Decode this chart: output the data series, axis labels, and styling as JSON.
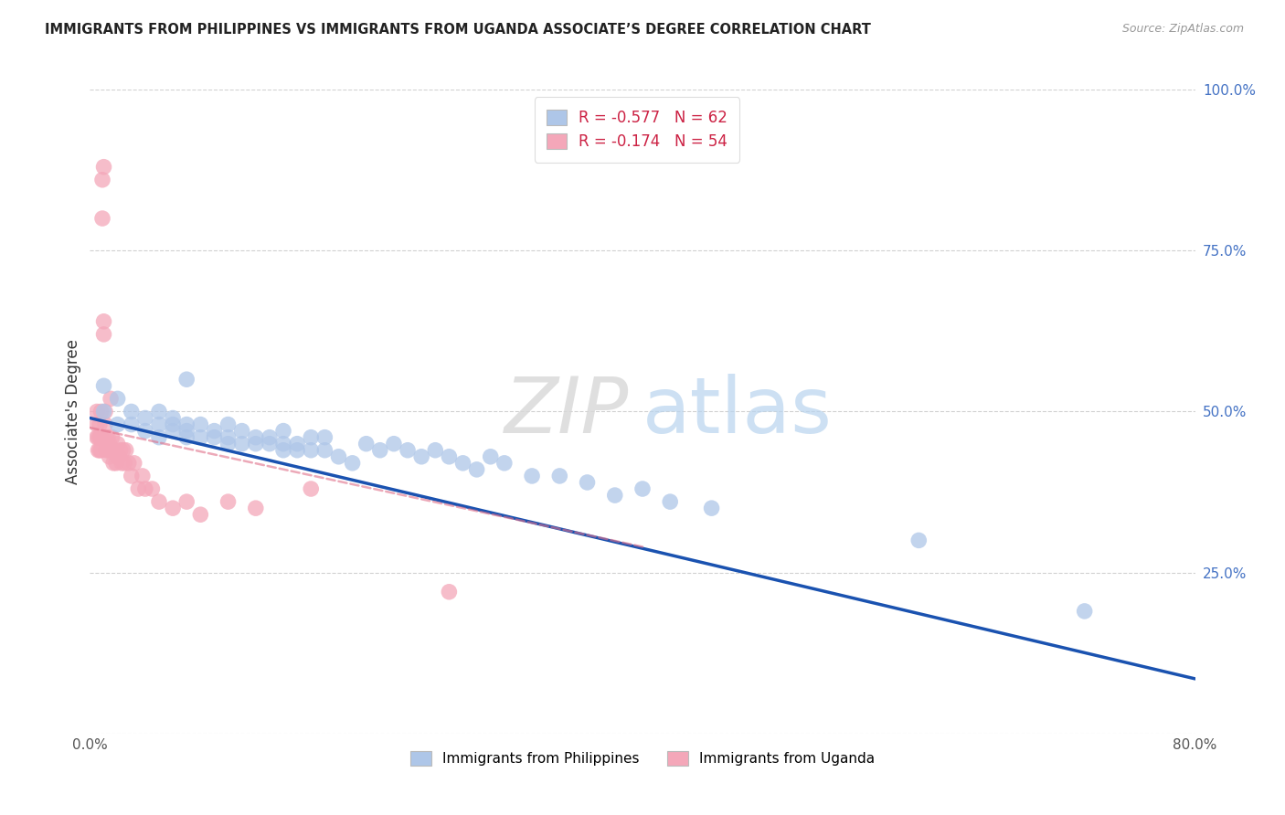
{
  "title": "IMMIGRANTS FROM PHILIPPINES VS IMMIGRANTS FROM UGANDA ASSOCIATE’S DEGREE CORRELATION CHART",
  "source": "Source: ZipAtlas.com",
  "ylabel": "Associate's Degree",
  "r_philippines": -0.577,
  "n_philippines": 62,
  "r_uganda": -0.174,
  "n_uganda": 54,
  "legend_label_philippines": "Immigrants from Philippines",
  "legend_label_uganda": "Immigrants from Uganda",
  "color_philippines": "#aec6e8",
  "color_uganda": "#f4a7b9",
  "trendline_color_philippines": "#1a52b0",
  "trendline_color_uganda": "#e0708a",
  "watermark_zip": "ZIP",
  "watermark_atlas": "atlas",
  "xlim": [
    0.0,
    0.8
  ],
  "ylim": [
    0.0,
    1.0
  ],
  "right_ytick_labels": [
    "",
    "25.0%",
    "50.0%",
    "75.0%",
    "100.0%"
  ],
  "right_ytick_color": "#4472c4",
  "phil_trendline_x0": 0.0,
  "phil_trendline_y0": 0.49,
  "phil_trendline_x1": 0.8,
  "phil_trendline_y1": 0.085,
  "ug_trendline_x0": 0.0,
  "ug_trendline_y0": 0.475,
  "ug_trendline_x1": 0.4,
  "ug_trendline_y1": 0.29,
  "phil_x": [
    0.01,
    0.01,
    0.02,
    0.02,
    0.03,
    0.03,
    0.04,
    0.04,
    0.05,
    0.05,
    0.05,
    0.06,
    0.06,
    0.06,
    0.07,
    0.07,
    0.07,
    0.07,
    0.08,
    0.08,
    0.09,
    0.09,
    0.1,
    0.1,
    0.1,
    0.11,
    0.11,
    0.12,
    0.12,
    0.13,
    0.13,
    0.14,
    0.14,
    0.14,
    0.15,
    0.15,
    0.16,
    0.16,
    0.17,
    0.17,
    0.18,
    0.19,
    0.2,
    0.21,
    0.22,
    0.23,
    0.24,
    0.25,
    0.26,
    0.27,
    0.28,
    0.29,
    0.3,
    0.32,
    0.34,
    0.36,
    0.38,
    0.4,
    0.42,
    0.45,
    0.6,
    0.72
  ],
  "phil_y": [
    0.5,
    0.54,
    0.48,
    0.52,
    0.48,
    0.5,
    0.47,
    0.49,
    0.46,
    0.48,
    0.5,
    0.47,
    0.48,
    0.49,
    0.46,
    0.47,
    0.48,
    0.55,
    0.46,
    0.48,
    0.46,
    0.47,
    0.45,
    0.46,
    0.48,
    0.45,
    0.47,
    0.45,
    0.46,
    0.45,
    0.46,
    0.44,
    0.45,
    0.47,
    0.44,
    0.45,
    0.44,
    0.46,
    0.44,
    0.46,
    0.43,
    0.42,
    0.45,
    0.44,
    0.45,
    0.44,
    0.43,
    0.44,
    0.43,
    0.42,
    0.41,
    0.43,
    0.42,
    0.4,
    0.4,
    0.39,
    0.37,
    0.38,
    0.36,
    0.35,
    0.3,
    0.19
  ],
  "ug_x": [
    0.005,
    0.005,
    0.005,
    0.006,
    0.006,
    0.007,
    0.007,
    0.007,
    0.008,
    0.008,
    0.008,
    0.009,
    0.009,
    0.01,
    0.01,
    0.01,
    0.011,
    0.011,
    0.012,
    0.012,
    0.013,
    0.013,
    0.014,
    0.014,
    0.015,
    0.015,
    0.016,
    0.016,
    0.017,
    0.018,
    0.019,
    0.02,
    0.02,
    0.021,
    0.022,
    0.023,
    0.024,
    0.025,
    0.026,
    0.028,
    0.03,
    0.032,
    0.035,
    0.038,
    0.04,
    0.045,
    0.05,
    0.06,
    0.07,
    0.08,
    0.1,
    0.12,
    0.16,
    0.26
  ],
  "ug_y": [
    0.46,
    0.48,
    0.5,
    0.44,
    0.46,
    0.44,
    0.46,
    0.48,
    0.44,
    0.46,
    0.5,
    0.8,
    0.86,
    0.88,
    0.62,
    0.64,
    0.48,
    0.5,
    0.44,
    0.46,
    0.44,
    0.46,
    0.43,
    0.45,
    0.44,
    0.52,
    0.44,
    0.46,
    0.42,
    0.44,
    0.42,
    0.43,
    0.45,
    0.43,
    0.44,
    0.42,
    0.44,
    0.42,
    0.44,
    0.42,
    0.4,
    0.42,
    0.38,
    0.4,
    0.38,
    0.38,
    0.36,
    0.35,
    0.36,
    0.34,
    0.36,
    0.35,
    0.38,
    0.22
  ]
}
